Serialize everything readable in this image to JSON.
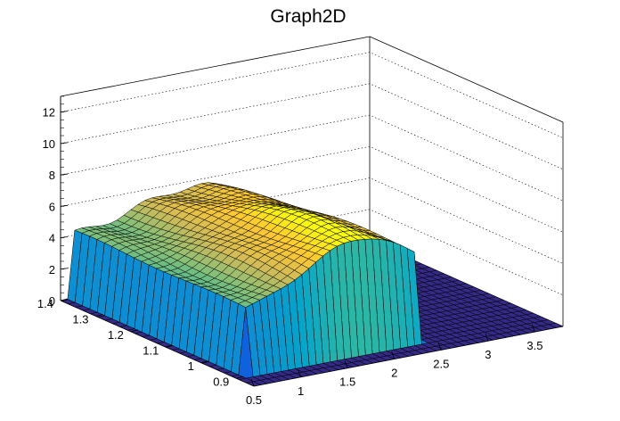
{
  "chart_data": {
    "type": "surface",
    "title": "Graph2D",
    "xlabel": "",
    "ylabel": "",
    "zlabel": "",
    "x_ticks": [
      "0.5",
      "1",
      "1.5",
      "2",
      "2.5",
      "3",
      "3.5"
    ],
    "y_ticks": [
      "0.9",
      "1",
      "1.1",
      "1.2",
      "1.3",
      "1.4"
    ],
    "z_ticks": [
      "0",
      "2",
      "4",
      "6",
      "8",
      "10",
      "12"
    ],
    "xlim": [
      0.5,
      3.8
    ],
    "ylim": [
      0.85,
      1.4
    ],
    "zlim": [
      0,
      13
    ],
    "grid": true,
    "palette": [
      "#352a87",
      "#0f5cdd",
      "#1481d6",
      "#06a4ca",
      "#2eb7a4",
      "#87bf77",
      "#d1bb59",
      "#fec832",
      "#f9fb0e"
    ],
    "surface": {
      "x_range": [
        0.5,
        3.8
      ],
      "y_range": [
        0.85,
        1.4
      ],
      "plateau_x": [
        0.6,
        2.45
      ],
      "plateau_y": [
        0.9,
        1.4
      ],
      "base_height": 4.0,
      "peak_height": 7.2,
      "peak_x": 1.85,
      "peak_y": 0.95,
      "floor_height": 0
    }
  }
}
